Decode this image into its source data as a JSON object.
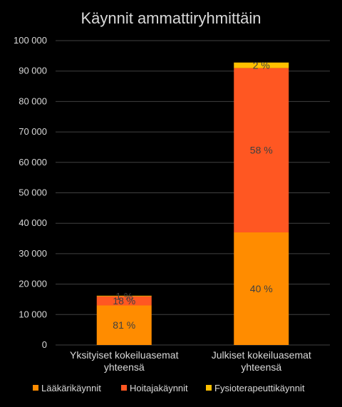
{
  "chart_data": {
    "type": "bar",
    "stacked": true,
    "title": "Käynnit ammattiryhmittäin",
    "xlabel": "",
    "ylabel": "",
    "ylim": [
      0,
      100000
    ],
    "yticks": [
      0,
      10000,
      20000,
      30000,
      40000,
      50000,
      60000,
      70000,
      80000,
      90000,
      100000
    ],
    "ytick_labels": [
      "0",
      "10 000",
      "20 000",
      "30 000",
      "40 000",
      "50 000",
      "60 000",
      "70 000",
      "80 000",
      "90 000",
      "100 000"
    ],
    "grid": true,
    "legend_position": "bottom",
    "categories": [
      [
        "Yksityiset kokeiluasemat",
        "yhteensä"
      ],
      [
        "Julkiset kokeiluasemat",
        "yhteensä"
      ]
    ],
    "series": [
      {
        "name": "Lääkärikäynnit",
        "color": "#ff8c00",
        "values": [
          13000,
          37000
        ],
        "labels": [
          "81 %",
          "40 %"
        ]
      },
      {
        "name": "Hoitajakäynnit",
        "color": "#ff5722",
        "values": [
          3000,
          54000
        ],
        "labels": [
          "18 %",
          "58 %"
        ]
      },
      {
        "name": "Fysioterapeuttikäynnit",
        "color": "#ffc000",
        "values": [
          200,
          1800
        ],
        "labels": [
          "1 %",
          "2 %"
        ]
      }
    ]
  }
}
